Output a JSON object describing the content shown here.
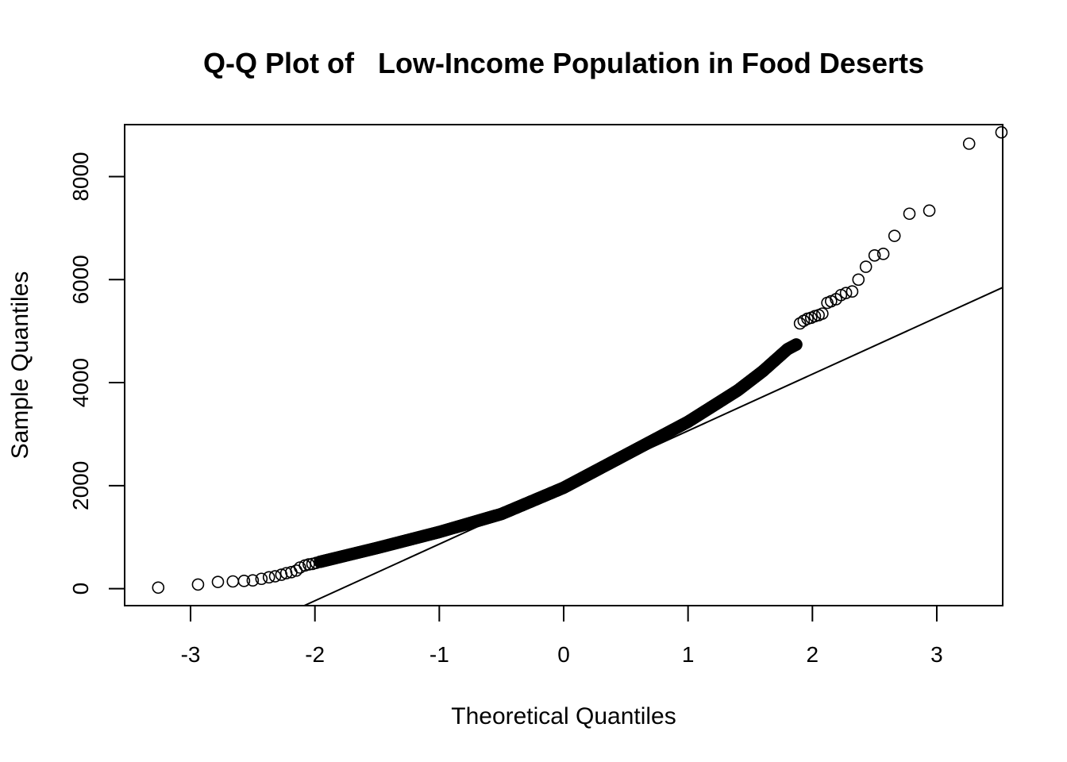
{
  "chart_data": {
    "type": "scatter",
    "title": "Q-Q Plot of   Low-Income Population in Food Deserts",
    "xlabel": "Theoretical Quantiles",
    "ylabel": "Sample Quantiles",
    "xlim": [
      -3.53,
      3.53
    ],
    "ylim": [
      -330,
      9010
    ],
    "xticks": [
      -3,
      -2,
      -1,
      0,
      1,
      2,
      3
    ],
    "xtick_labels": [
      "-3",
      "-2",
      "-1",
      "0",
      "1",
      "2",
      "3"
    ],
    "yticks": [
      0,
      2000,
      4000,
      6000,
      8000
    ],
    "ytick_labels": [
      "0",
      "2000",
      "4000",
      "6000",
      "8000"
    ],
    "grid": false,
    "legend": false,
    "reference_line": {
      "intercept": 1965,
      "slope": 1100
    },
    "tail_points": [
      [
        -3.26,
        20
      ],
      [
        -2.94,
        80
      ],
      [
        -2.78,
        130
      ],
      [
        -2.66,
        140
      ],
      [
        -2.57,
        150
      ],
      [
        -2.5,
        160
      ],
      [
        -2.43,
        190
      ],
      [
        -2.37,
        220
      ],
      [
        -2.32,
        240
      ],
      [
        -2.27,
        270
      ],
      [
        -2.23,
        300
      ],
      [
        -2.19,
        320
      ],
      [
        -2.15,
        350
      ],
      [
        -2.12,
        410
      ],
      [
        -2.08,
        450
      ],
      [
        -2.05,
        470
      ],
      [
        -2.02,
        480
      ],
      [
        -1.99,
        500
      ],
      [
        -1.96,
        520
      ],
      [
        1.87,
        4740
      ],
      [
        1.9,
        5150
      ],
      [
        1.93,
        5200
      ],
      [
        1.96,
        5240
      ],
      [
        1.99,
        5260
      ],
      [
        2.02,
        5290
      ],
      [
        2.05,
        5310
      ],
      [
        2.08,
        5340
      ],
      [
        2.12,
        5550
      ],
      [
        2.15,
        5580
      ],
      [
        2.19,
        5620
      ],
      [
        2.23,
        5700
      ],
      [
        2.27,
        5740
      ],
      [
        2.32,
        5770
      ],
      [
        2.37,
        6000
      ],
      [
        2.43,
        6250
      ],
      [
        2.5,
        6470
      ],
      [
        2.57,
        6500
      ],
      [
        2.66,
        6850
      ],
      [
        2.78,
        7280
      ],
      [
        2.94,
        7340
      ],
      [
        3.26,
        8640
      ],
      [
        3.52,
        8860
      ]
    ],
    "body_curve": [
      [
        -1.96,
        520
      ],
      [
        -1.5,
        790
      ],
      [
        -1.0,
        1100
      ],
      [
        -0.5,
        1450
      ],
      [
        0.0,
        1960
      ],
      [
        0.5,
        2600
      ],
      [
        1.0,
        3240
      ],
      [
        1.4,
        3850
      ],
      [
        1.6,
        4220
      ],
      [
        1.8,
        4650
      ],
      [
        1.87,
        4740
      ]
    ],
    "body_point_count": 700
  }
}
